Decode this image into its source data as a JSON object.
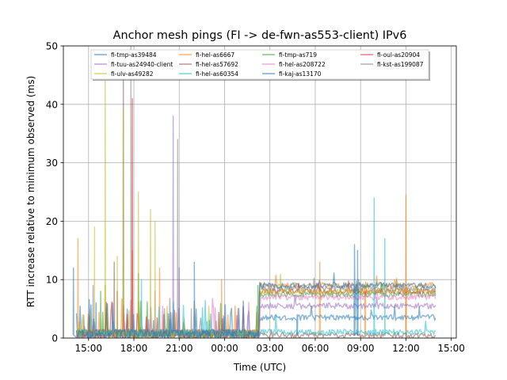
{
  "chart_data": {
    "type": "line",
    "title": "Anchor mesh pings (FI -> de-fwn-as553-client) IPv6",
    "xlabel": "Time (UTC)",
    "ylabel": "RTT increase relative to minimum observed (ms)",
    "xlim": [
      "13:20",
      "15:20 +1d"
    ],
    "ylim": [
      0,
      50
    ],
    "grid": true,
    "legend_location": "upper center",
    "x_ticks": [
      "15:00",
      "18:00",
      "21:00",
      "00:00",
      "03:00",
      "06:00",
      "09:00",
      "12:00",
      "15:00"
    ],
    "y_ticks": [
      "0",
      "10",
      "20",
      "30",
      "40",
      "50"
    ],
    "series": [
      {
        "name": "fi-tmp-as39484",
        "color": "#1f77b4",
        "baseline_day": 1,
        "baseline_after": 3.5,
        "spikes": [
          [
            15.5,
            6
          ],
          [
            20.0,
            4
          ],
          [
            23.0,
            3
          ],
          [
            4.8,
            4
          ]
        ]
      },
      {
        "name": "fi-hel-as6667",
        "color": "#ff7f0e",
        "baseline_day": 1,
        "baseline_after": 9,
        "spikes": [
          [
            14.3,
            17
          ],
          [
            16.1,
            9
          ],
          [
            17.9,
            15
          ],
          [
            19.7,
            12
          ],
          [
            23.8,
            10
          ],
          [
            6.3,
            13
          ],
          [
            12.0,
            24.5
          ],
          [
            9.3,
            8
          ]
        ]
      },
      {
        "name": "fi-tmp-as719",
        "color": "#2ca02c",
        "baseline_day": 1,
        "baseline_after": 7.5,
        "spikes": [
          [
            15.8,
            8
          ],
          [
            18.3,
            11
          ],
          [
            2.2,
            9
          ]
        ]
      },
      {
        "name": "fi-oul-as20904",
        "color": "#d62728",
        "baseline_day": 1,
        "baseline_after": 8,
        "spikes": [
          [
            17.9,
            41
          ],
          [
            16.9,
            8
          ]
        ]
      },
      {
        "name": "fi-tuu-as24940-client",
        "color": "#9467bd",
        "baseline_day": 1,
        "baseline_after": 5.5,
        "spikes": [
          [
            20.6,
            38
          ],
          [
            15.3,
            9
          ],
          [
            21.0,
            12
          ]
        ]
      },
      {
        "name": "fi-hel-as57692",
        "color": "#8c564b",
        "baseline_day": 1,
        "baseline_after": 0.5,
        "spikes": [
          [
            17.3,
            47
          ],
          [
            16.7,
            13
          ]
        ]
      },
      {
        "name": "fi-hel-as208722",
        "color": "#e377c2",
        "baseline_day": 1,
        "baseline_after": 7,
        "spikes": [
          [
            19.4,
            8
          ],
          [
            2.3,
            6
          ]
        ]
      },
      {
        "name": "fi-kst-as199087",
        "color": "#7f7f7f",
        "baseline_day": 1,
        "baseline_after": 8.5,
        "spikes": [
          [
            17.8,
            50
          ],
          [
            20.9,
            34
          ],
          [
            21.8,
            5
          ]
        ]
      },
      {
        "name": "fi-ulv-as49282",
        "color": "#bcbd22",
        "baseline_day": 1,
        "baseline_after": 8,
        "spikes": [
          [
            16.1,
            44
          ],
          [
            17.3,
            39
          ],
          [
            19.1,
            22
          ],
          [
            19.4,
            20
          ],
          [
            18.3,
            25
          ],
          [
            15.4,
            19
          ],
          [
            16.9,
            14
          ]
        ]
      },
      {
        "name": "fi-hel-as60354",
        "color": "#17becf",
        "baseline_day": 1,
        "baseline_after": 1,
        "spikes": [
          [
            9.9,
            24
          ],
          [
            10.6,
            17
          ],
          [
            18.5,
            10
          ]
        ]
      },
      {
        "name": "fi-kaj-as13170",
        "color": "#1f77b4",
        "baseline_day": 1,
        "baseline_after": 9,
        "spikes": [
          [
            8.6,
            16
          ],
          [
            14.0,
            12
          ],
          [
            22.0,
            13
          ],
          [
            8.8,
            15
          ]
        ]
      }
    ]
  }
}
